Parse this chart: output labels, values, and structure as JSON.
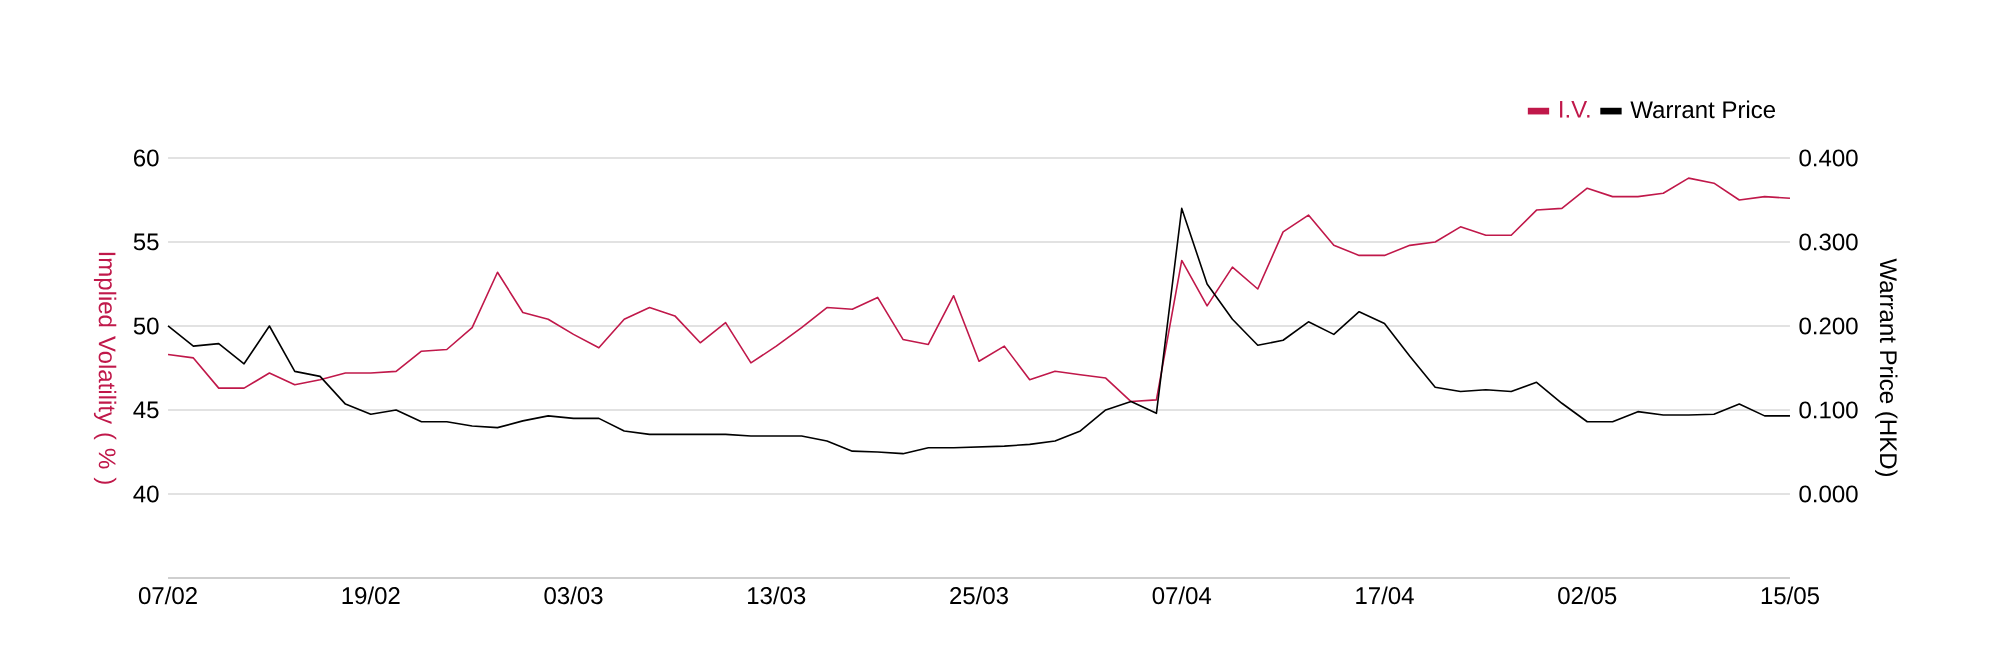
{
  "chart_data": {
    "type": "line",
    "categories": [
      "07/02",
      null,
      null,
      null,
      null,
      null,
      null,
      null,
      "19/02",
      null,
      null,
      null,
      null,
      null,
      null,
      null,
      "03/03",
      null,
      null,
      null,
      null,
      null,
      null,
      null,
      "13/03",
      null,
      null,
      null,
      null,
      null,
      null,
      null,
      "25/03",
      null,
      null,
      null,
      null,
      null,
      null,
      null,
      "07/04",
      null,
      null,
      null,
      null,
      null,
      null,
      null,
      "17/04",
      null,
      null,
      null,
      null,
      null,
      null,
      null,
      "02/05",
      null,
      null,
      null,
      null,
      null,
      null,
      null,
      "15/05"
    ],
    "ylabel": "Implied Volatility ( % )",
    "y2label": "Warrant Price (HKD)",
    "ylim": [
      35,
      60
    ],
    "yticks": [
      40,
      45,
      50,
      55,
      60
    ],
    "y2lim": [
      -0.1,
      0.4
    ],
    "y2ticks": [
      {
        "value": 0,
        "label": "0.000"
      },
      {
        "value": 0.1,
        "label": "0.100"
      },
      {
        "value": 0.2,
        "label": "0.200"
      },
      {
        "value": 0.3,
        "label": "0.300"
      },
      {
        "value": 0.4,
        "label": "0.400"
      }
    ],
    "grid": "y",
    "legend": "top right",
    "marker": "none",
    "line_style": "solid",
    "series": [
      {
        "name": "I.V.",
        "color": "#c0184a",
        "values": [
          48.3,
          48.1,
          46.3,
          46.3,
          47.2,
          46.5,
          46.8,
          47.2,
          47.2,
          47.3,
          48.5,
          48.6,
          49.9,
          53.2,
          50.8,
          50.4,
          49.5,
          48.7,
          50.4,
          51.1,
          50.6,
          49.0,
          50.2,
          47.8,
          48.8,
          49.9,
          51.1,
          51.0,
          51.7,
          49.2,
          48.9,
          51.8,
          47.9,
          48.8,
          46.8,
          47.3,
          47.1,
          46.9,
          45.5,
          45.6,
          53.9,
          51.2,
          53.5,
          52.2,
          55.6,
          56.6,
          54.8,
          54.2,
          54.2,
          54.8,
          55.0,
          55.9,
          55.4,
          55.4,
          56.9,
          57.0,
          58.2,
          57.7,
          57.7,
          57.9,
          58.8,
          58.5,
          57.5,
          57.7,
          57.6
        ]
      },
      {
        "name": "Warrant Price",
        "color": "#000000",
        "axis": "y2",
        "values": [
          0.2,
          0.176,
          0.179,
          0.155,
          0.2,
          0.146,
          0.14,
          0.107,
          0.095,
          0.1,
          0.086,
          0.086,
          0.081,
          0.079,
          0.087,
          0.093,
          0.09,
          0.09,
          0.075,
          0.071,
          0.071,
          0.071,
          0.071,
          0.069,
          0.069,
          0.069,
          0.063,
          0.051,
          0.05,
          0.048,
          0.055,
          0.055,
          0.056,
          0.057,
          0.059,
          0.063,
          0.075,
          0.1,
          0.11,
          0.096,
          0.34,
          0.25,
          0.208,
          0.177,
          0.183,
          0.205,
          0.19,
          0.217,
          0.203,
          0.164,
          0.127,
          0.122,
          0.124,
          0.122,
          0.133,
          0.108,
          0.086,
          0.086,
          0.098,
          0.094,
          0.094,
          0.095,
          0.107,
          0.093,
          0.093
        ]
      }
    ]
  }
}
